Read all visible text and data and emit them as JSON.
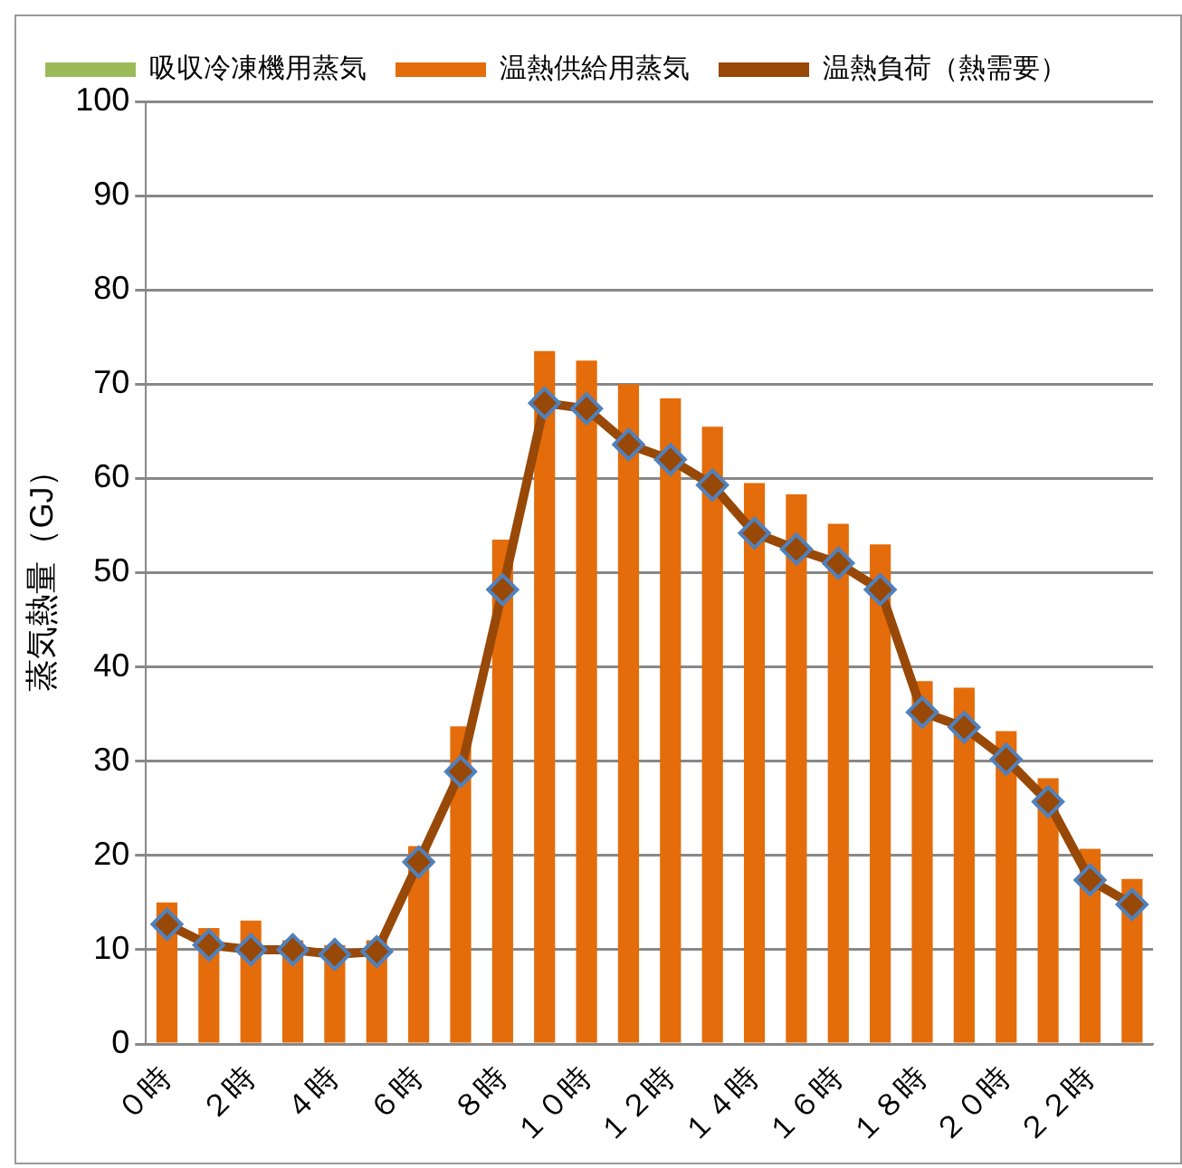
{
  "chart_data": {
    "type": "bar",
    "ylabel": "蒸気熱量（GJ）",
    "categories": [
      "０時",
      null,
      "２時",
      null,
      "４時",
      null,
      "６時",
      null,
      "８時",
      null,
      "１０時",
      null,
      "１２時",
      null,
      "１４時",
      null,
      "１６時",
      null,
      "１８時",
      null,
      "２０時",
      null,
      "２２時",
      null
    ],
    "series": [
      {
        "name": "吸収冷凍機用蒸気",
        "color": "#9bbb59",
        "values": [
          0,
          0,
          0,
          0,
          0,
          0,
          0,
          0,
          0,
          0,
          0,
          0,
          0,
          0,
          0,
          0,
          0,
          0,
          0,
          0,
          0,
          0,
          0,
          0
        ]
      },
      {
        "name": "温熱供給用蒸気",
        "color": "#e46c0a",
        "values": [
          15,
          12.3,
          13.1,
          11,
          10.5,
          11,
          21,
          33.7,
          53.5,
          73.5,
          72.5,
          70,
          68.5,
          65.5,
          59.5,
          58.3,
          55.2,
          53,
          38.5,
          37.8,
          33.2,
          28.2,
          20.7,
          17.5
        ]
      },
      {
        "name": "温熱負荷（熱需要）",
        "type": "line",
        "color": "#984807",
        "marker": "diamond",
        "values": [
          12.7,
          10.5,
          10,
          10,
          9.5,
          9.8,
          19.3,
          28.9,
          48.2,
          68,
          67.4,
          63.6,
          62,
          59.3,
          54.2,
          52.5,
          51,
          48.2,
          35.2,
          33.6,
          30.2,
          25.7,
          17.4,
          14.8
        ]
      }
    ],
    "stacked": true,
    "ylim": [
      0,
      100
    ],
    "yticks": [
      0,
      10,
      20,
      30,
      40,
      50,
      60,
      70,
      80,
      90,
      100
    ],
    "grid": "y",
    "legend": "top"
  }
}
